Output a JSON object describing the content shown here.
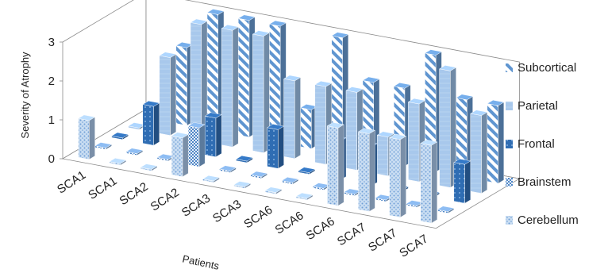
{
  "chart_data": {
    "type": "bar",
    "subtype": "3d-column",
    "title": "",
    "ylabel": "Severity of Atrophy",
    "xlabel": "Patients",
    "ylim": [
      0,
      3
    ],
    "yticks": [
      "0",
      "1",
      "2",
      "3"
    ],
    "categories": [
      "SCA1",
      "SCA1",
      "SCA2",
      "SCA2",
      "SCA3",
      "SCA3",
      "SCA6",
      "SCA6",
      "SCA6",
      "SCA7",
      "SCA7",
      "SCA7"
    ],
    "series": [
      {
        "name": "Cerebellum",
        "color": "#a9c7ea",
        "pattern": "dots-light",
        "values": [
          1,
          0,
          0,
          1,
          0,
          0,
          0,
          0,
          2,
          2,
          2,
          2
        ]
      },
      {
        "name": "Brainstem",
        "color": "#7fa9d9",
        "pattern": "checker",
        "values": [
          0,
          0,
          0,
          1,
          0,
          0,
          0,
          0,
          0,
          0,
          0,
          0
        ]
      },
      {
        "name": "Frontal",
        "color": "#2f6db3",
        "pattern": "dots-dark",
        "values": [
          0,
          1,
          0,
          1,
          0,
          1,
          0,
          1,
          1,
          0,
          0,
          1
        ]
      },
      {
        "name": "Parietal",
        "color": "#9bbfe6",
        "pattern": "plain",
        "values": [
          0,
          2,
          3,
          3,
          3,
          2,
          2,
          2,
          1,
          2,
          3,
          2
        ]
      },
      {
        "name": "Subcortical",
        "color": "#6a9cd3",
        "pattern": "stripes",
        "values": [
          0,
          2,
          3,
          3,
          3,
          1,
          3,
          2,
          2,
          3,
          2,
          2
        ]
      }
    ],
    "legend_position": "right",
    "grid": false
  }
}
